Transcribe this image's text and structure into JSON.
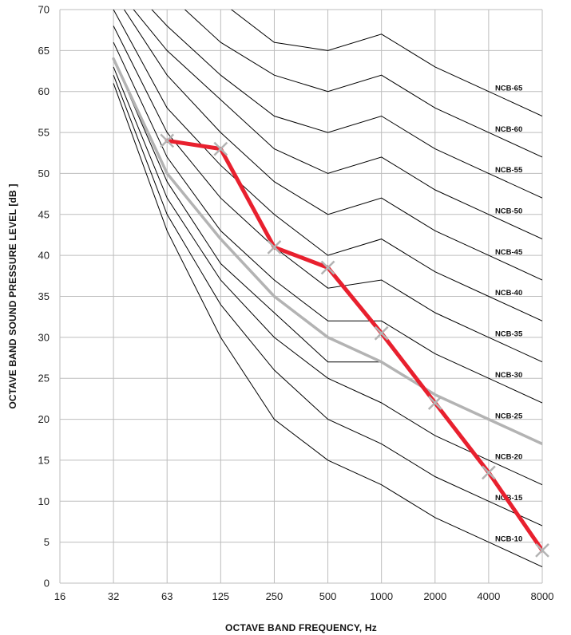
{
  "chart_data": {
    "type": "line",
    "xlabel": "OCTAVE BAND FREQUENCY, Hz",
    "ylabel": "OCTAVE BAND SOUND PRESSURE LEVEL [dB ]",
    "x_scale": "log2",
    "x_ticks": [
      "16",
      "32",
      "63",
      "125",
      "250",
      "500",
      "1000",
      "2000",
      "4000",
      "8000"
    ],
    "y_ticks": [
      "0",
      "5",
      "10",
      "15",
      "20",
      "25",
      "30",
      "35",
      "40",
      "45",
      "50",
      "55",
      "60",
      "65",
      "70"
    ],
    "ylim": [
      0,
      70
    ],
    "grid": true,
    "colors": {
      "curve": "#000000",
      "measured": "#e8202e",
      "reference": "#b3b3b3",
      "grid": "#bdbdbd"
    },
    "ncb_curves": [
      {
        "name": "NCB-65",
        "values": [
          null,
          79,
          74,
          71,
          66,
          65,
          67,
          63,
          60,
          57
        ]
      },
      {
        "name": "NCB-60",
        "values": [
          null,
          77,
          72,
          66,
          62,
          60,
          62,
          58,
          55,
          52
        ]
      },
      {
        "name": "NCB-55",
        "values": [
          null,
          75,
          68,
          62,
          57,
          55,
          57,
          53,
          50,
          47
        ]
      },
      {
        "name": "NCB-50",
        "values": [
          null,
          73,
          65,
          59,
          53,
          50,
          52,
          48,
          45,
          42
        ]
      },
      {
        "name": "NCB-45",
        "values": [
          null,
          72,
          62,
          55,
          49,
          45,
          47,
          43,
          40,
          37
        ]
      },
      {
        "name": "NCB-40",
        "values": [
          null,
          70,
          58,
          51,
          45,
          40,
          42,
          38,
          35,
          32
        ]
      },
      {
        "name": "NCB-35",
        "values": [
          null,
          68,
          55,
          47,
          41,
          36,
          37,
          33,
          30,
          27
        ]
      },
      {
        "name": "NCB-30",
        "values": [
          null,
          66,
          52,
          43,
          37,
          32,
          32,
          28,
          25,
          22
        ]
      },
      {
        "name": "NCB-25",
        "values": [
          null,
          64,
          49,
          39,
          33,
          27,
          27,
          23,
          20,
          17
        ]
      },
      {
        "name": "NCB-20",
        "values": [
          null,
          63,
          47,
          37,
          30,
          25,
          22,
          18,
          15,
          12
        ]
      },
      {
        "name": "NCB-15",
        "values": [
          null,
          62,
          45,
          34,
          26,
          20,
          17,
          13,
          10,
          7
        ]
      },
      {
        "name": "NCB-10",
        "values": [
          null,
          61,
          43,
          30,
          20,
          15,
          12,
          8,
          5,
          2
        ]
      }
    ],
    "series": [
      {
        "x": [
          "63",
          "125",
          "250",
          "500",
          "1000",
          "2000",
          "4000",
          "8000"
        ],
        "values": [
          54,
          53,
          41,
          38.5,
          30.5,
          22,
          13.5,
          4
        ]
      },
      {
        "x": [
          "32",
          "63",
          "125",
          "250",
          "500",
          "1000",
          "2000",
          "4000",
          "8000"
        ],
        "values": [
          64,
          50,
          42,
          35,
          30,
          27,
          23,
          20,
          17
        ]
      }
    ]
  }
}
